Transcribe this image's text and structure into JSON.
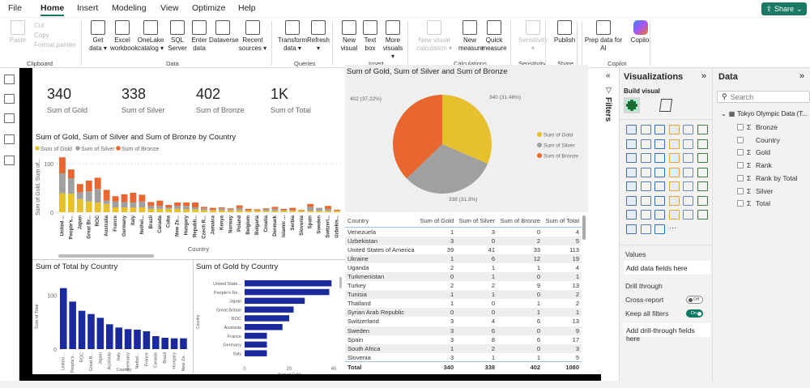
{
  "menu": {
    "items": [
      "File",
      "Home",
      "Insert",
      "Modeling",
      "View",
      "Optimize",
      "Help"
    ],
    "active": "Home",
    "share": "Share"
  },
  "ribbon": {
    "buttons": [
      {
        "label": "Paste",
        "disabled": true
      },
      {
        "label": "Cut",
        "disabled": true
      },
      {
        "label": "Copy",
        "disabled": true
      },
      {
        "label": "Format painter",
        "disabled": true
      },
      {
        "label": "Get data ▾"
      },
      {
        "label": "Excel workbook"
      },
      {
        "label": "OneLake catalog ▾"
      },
      {
        "label": "SQL Server"
      },
      {
        "label": "Enter data"
      },
      {
        "label": "Dataverse"
      },
      {
        "label": "Recent sources ▾"
      },
      {
        "label": "Transform data ▾"
      },
      {
        "label": "Refresh ▾"
      },
      {
        "label": "New visual"
      },
      {
        "label": "Text box"
      },
      {
        "label": "More visuals ▾"
      },
      {
        "label": "New visual calculation ▾",
        "disabled": true
      },
      {
        "label": "New measure"
      },
      {
        "label": "Quick measure"
      },
      {
        "label": "Sensitivity ▾",
        "disabled": true
      },
      {
        "label": "Publish"
      },
      {
        "label": "Prep data for AI"
      },
      {
        "label": "Copilot"
      }
    ],
    "groups": [
      "Clipboard",
      "Data",
      "Queries",
      "Insert",
      "Calculations",
      "Sensitivity",
      "Share",
      "Copilot"
    ]
  },
  "cards": [
    {
      "value": "340",
      "label": "Sum of Gold"
    },
    {
      "value": "338",
      "label": "Sum of Silver"
    },
    {
      "value": "402",
      "label": "Sum of Bronze"
    },
    {
      "value": "1K",
      "label": "Sum of Total"
    }
  ],
  "colors": {
    "gold": "#e6c02e",
    "silver": "#a0a0a0",
    "bronze": "#e8662f",
    "navy": "#1a2a9c",
    "accent": "#117865"
  },
  "chart_data": [
    {
      "type": "bar",
      "stacked": true,
      "title": "Sum of Gold, Sum of Silver and Sum of Bronze by Country",
      "xlabel": "Country",
      "ylabel": "Sum of Gold, Sum of...",
      "yticks": [
        0,
        100
      ],
      "ylim": [
        0,
        120
      ],
      "legend": "top-left",
      "grid": true,
      "categories": [
        "United ...",
        "People's...",
        "Japan",
        "Great Br...",
        "ROC",
        "Australia",
        "France",
        "Germany",
        "Italy",
        "Nethel...",
        "Brazil",
        "Canada",
        "Cuba",
        "New Ze...",
        "Hungary",
        "Republi...",
        "Czech R...",
        "Jamaica",
        "Kenya",
        "Norway",
        "Poland",
        "Belgium",
        "Bulgaria",
        "Croatia",
        "Denmark",
        "Islamic ...",
        "Serbia",
        "Slovenia",
        "Spain",
        "Sweden",
        "Switzerl...",
        "Uzbekis..."
      ],
      "series": [
        {
          "name": "Sum of Gold",
          "values": [
            39,
            38,
            27,
            22,
            20,
            17,
            10,
            10,
            10,
            10,
            7,
            7,
            7,
            7,
            6,
            6,
            4,
            4,
            4,
            4,
            4,
            3,
            3,
            3,
            3,
            3,
            3,
            3,
            3,
            3,
            3,
            3
          ]
        },
        {
          "name": "Sum of Silver",
          "values": [
            41,
            32,
            14,
            21,
            28,
            7,
            12,
            11,
            10,
            12,
            6,
            6,
            3,
            6,
            7,
            4,
            4,
            1,
            4,
            2,
            5,
            1,
            1,
            3,
            4,
            2,
            1,
            1,
            8,
            6,
            4,
            0
          ]
        },
        {
          "name": "Sum of Bronze",
          "values": [
            33,
            18,
            17,
            22,
            23,
            22,
            11,
            16,
            20,
            14,
            8,
            11,
            5,
            7,
            7,
            10,
            3,
            4,
            2,
            2,
            5,
            3,
            2,
            2,
            4,
            2,
            5,
            1,
            6,
            0,
            6,
            2
          ]
        }
      ]
    },
    {
      "type": "pie",
      "title": "Sum of Gold, Sum of Silver and Sum of Bronze",
      "legend": "right",
      "slices": [
        {
          "name": "Sum of Gold",
          "value": 340,
          "label": "340 (31.48%)"
        },
        {
          "name": "Sum of Silver",
          "value": 338,
          "label": "338 (31.3%)"
        },
        {
          "name": "Sum of Bronze",
          "value": 402,
          "label": "402 (37.22%)"
        }
      ]
    },
    {
      "type": "bar",
      "title": "Sum of Total by Country",
      "xlabel": "Country",
      "ylabel": "Sum of Total",
      "yticks": [
        0,
        100
      ],
      "ylim": [
        0,
        120
      ],
      "categories": [
        "United ...",
        "People's...",
        "ROC",
        "Great B...",
        "Japan",
        "Australia",
        "Italy",
        "Germany",
        "Nethel...",
        "France",
        "Canada",
        "Brazil",
        "Hungary",
        "New Ze..."
      ],
      "values": [
        113,
        88,
        71,
        65,
        58,
        46,
        40,
        37,
        36,
        33,
        24,
        21,
        20,
        20
      ]
    },
    {
      "type": "bar",
      "orientation": "horizontal",
      "title": "Sum of Gold by Country",
      "xlabel": "Sum of Gold",
      "ylabel": "Country",
      "xticks": [
        0,
        20,
        40
      ],
      "xlim": [
        0,
        40
      ],
      "categories": [
        "United State...",
        "People's Re...",
        "Japan",
        "Great Britain",
        "ROC",
        "Australia",
        "France",
        "Germany",
        "Italy"
      ],
      "values": [
        39,
        38,
        27,
        22,
        20,
        17,
        10,
        10,
        10
      ]
    },
    {
      "type": "table",
      "columns": [
        "Country",
        "Sum of Gold",
        "Sum of Silver",
        "Sum of Bronze",
        "Sum of Total"
      ],
      "rows": [
        [
          "Venezuela",
          1,
          3,
          0,
          4
        ],
        [
          "Uzbekistan",
          3,
          0,
          2,
          5
        ],
        [
          "United States of America",
          39,
          41,
          33,
          113
        ],
        [
          "Ukraine",
          1,
          6,
          12,
          19
        ],
        [
          "Uganda",
          2,
          1,
          1,
          4
        ],
        [
          "Turkmenistan",
          0,
          1,
          0,
          1
        ],
        [
          "Turkey",
          2,
          2,
          9,
          13
        ],
        [
          "Tunisia",
          1,
          1,
          0,
          2
        ],
        [
          "Thailand",
          1,
          0,
          1,
          2
        ],
        [
          "Syrian Arab Republic",
          0,
          0,
          1,
          1
        ],
        [
          "Switzerland",
          3,
          4,
          6,
          13
        ],
        [
          "Sweden",
          3,
          6,
          0,
          9
        ],
        [
          "Spain",
          3,
          8,
          6,
          17
        ],
        [
          "South Africa",
          1,
          2,
          0,
          3
        ],
        [
          "Slovenia",
          3,
          1,
          1,
          5
        ]
      ],
      "total": [
        "Total",
        340,
        338,
        402,
        1080
      ]
    }
  ],
  "filters": {
    "label": "Filters"
  },
  "viz": {
    "title": "Visualizations",
    "build": "Build visual",
    "values_label": "Values",
    "values_well": "Add data fields here",
    "drill": "Drill through",
    "cross": "Cross-report",
    "cross_state": "Off",
    "keep": "Keep all filters",
    "keep_state": "On",
    "drill_well": "Add drill-through fields here",
    "more": "···"
  },
  "data": {
    "title": "Data",
    "search_placeholder": "Search",
    "table": "Tokyo Olympic Data (T...",
    "fields": [
      {
        "name": "Bronze",
        "sigma": true
      },
      {
        "name": "Country",
        "sigma": false
      },
      {
        "name": "Gold",
        "sigma": true
      },
      {
        "name": "Rank",
        "sigma": true
      },
      {
        "name": "Rank by Total",
        "sigma": true
      },
      {
        "name": "Silver",
        "sigma": true
      },
      {
        "name": "Total",
        "sigma": true
      }
    ]
  }
}
